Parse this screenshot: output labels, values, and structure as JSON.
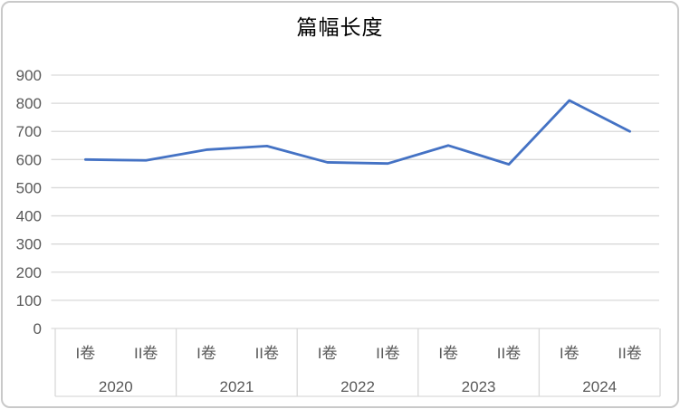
{
  "chart_data": {
    "type": "line",
    "title": "篇幅长度",
    "x_groups": [
      {
        "label": "2020",
        "ticks": [
          "I卷",
          "II卷"
        ]
      },
      {
        "label": "2021",
        "ticks": [
          "I卷",
          "II卷"
        ]
      },
      {
        "label": "2022",
        "ticks": [
          "I卷",
          "II卷"
        ]
      },
      {
        "label": "2023",
        "ticks": [
          "I卷",
          "II卷"
        ]
      },
      {
        "label": "2024",
        "ticks": [
          "I卷",
          "II卷"
        ]
      }
    ],
    "series": [
      {
        "name": "篇幅长度",
        "values": [
          600,
          597,
          635,
          648,
          590,
          586,
          650,
          583,
          810,
          700
        ]
      }
    ],
    "ylim": [
      0,
      900
    ],
    "yticks": [
      0,
      100,
      200,
      300,
      400,
      500,
      600,
      700,
      800,
      900
    ],
    "grid": "horizontal",
    "legend_position": "none",
    "xlabel": "",
    "ylabel": "",
    "colors": {
      "line": "#4472C4",
      "gridline": "#D9D9D9",
      "text": "#595959"
    }
  }
}
